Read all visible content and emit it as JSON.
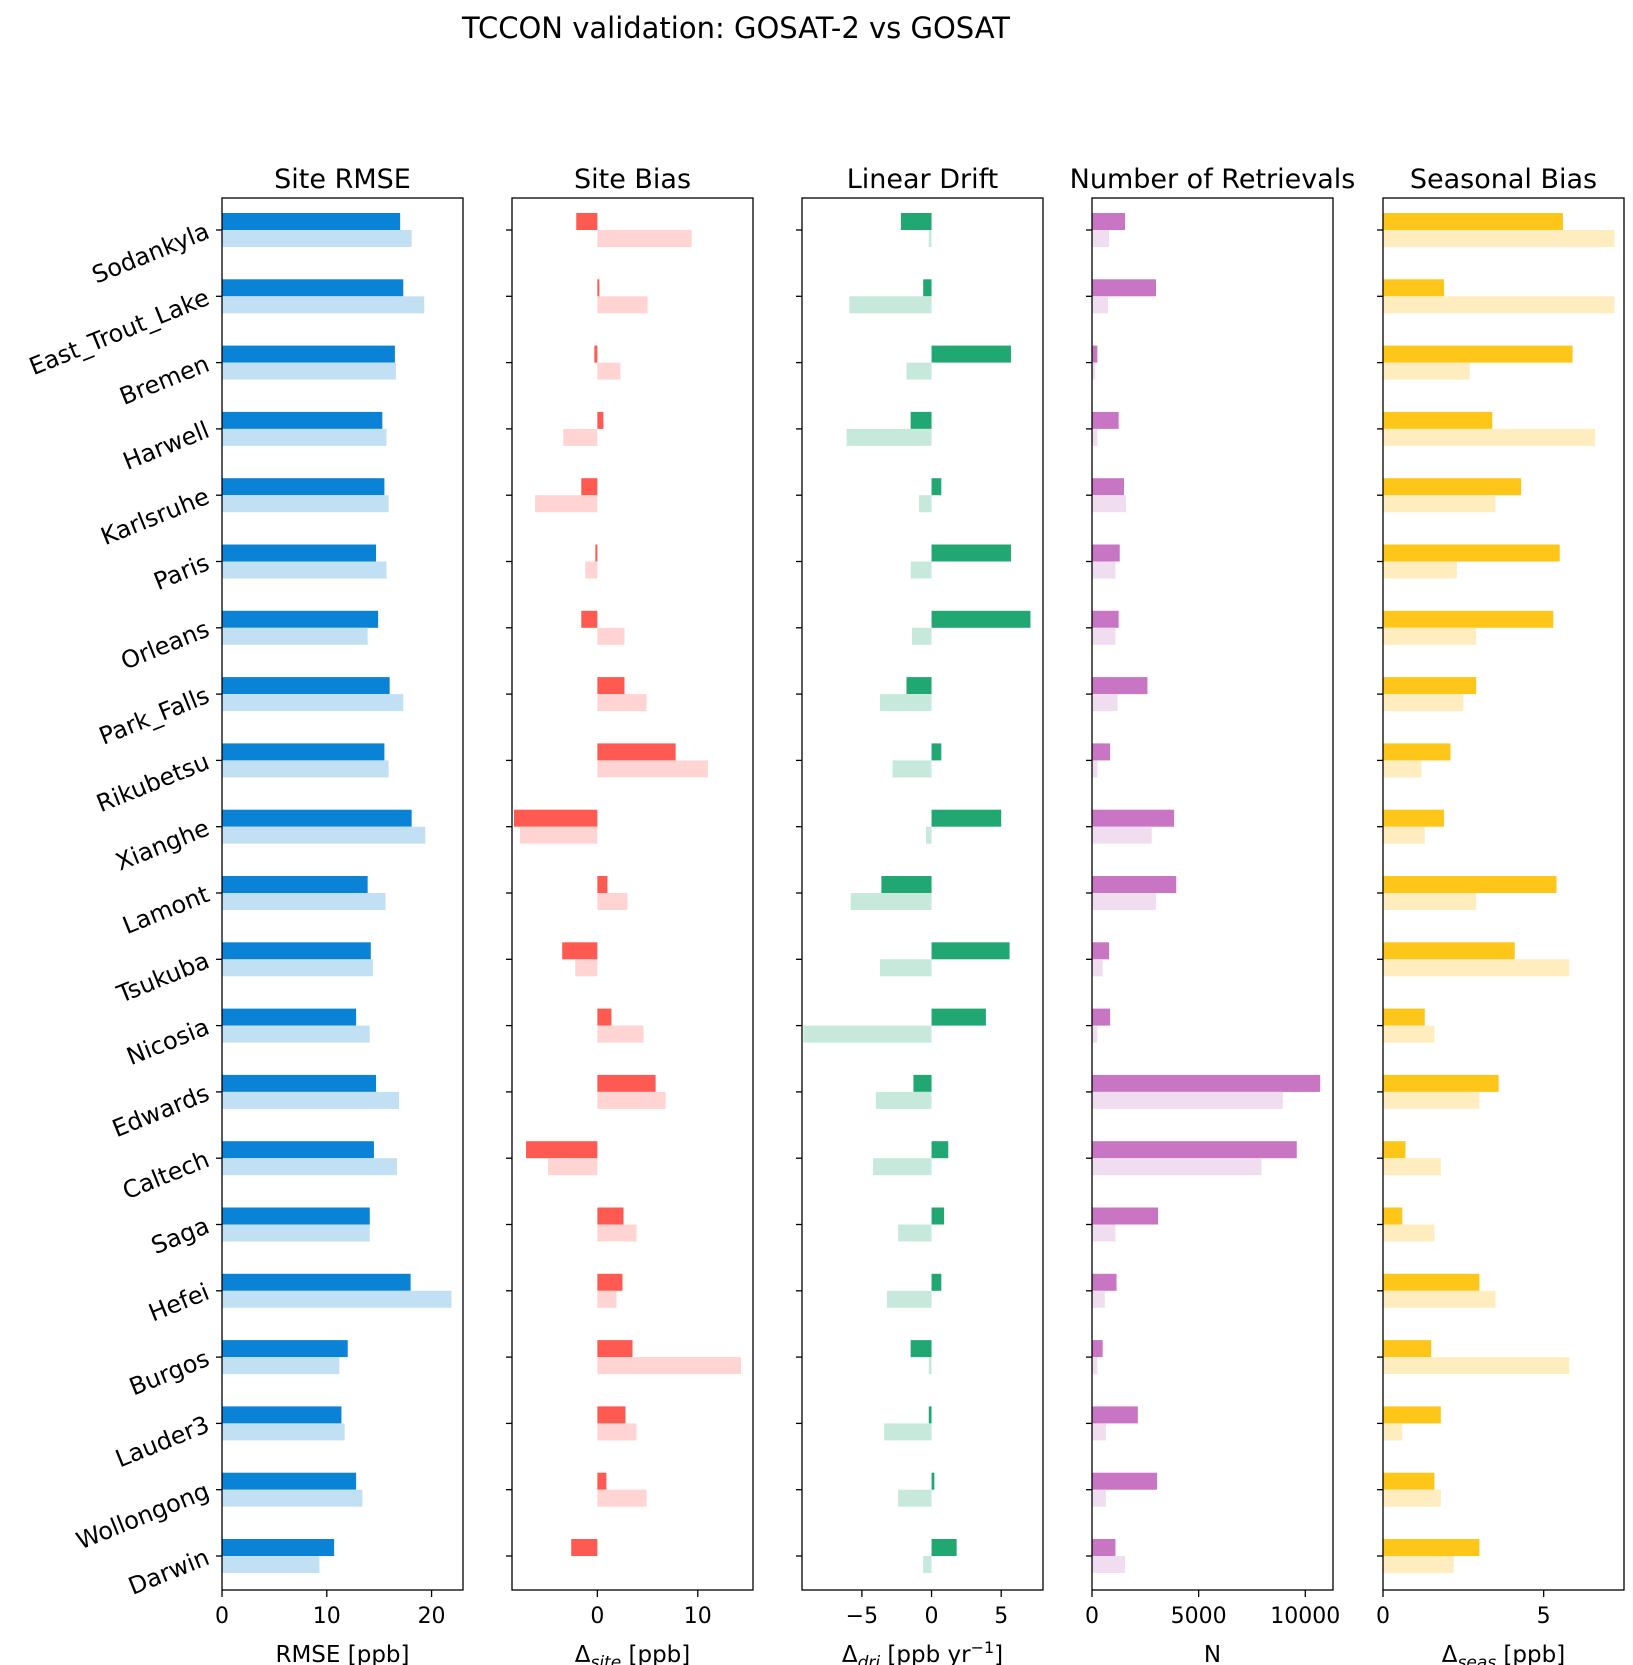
{
  "title": "TCCON validation: GOSAT-2 vs GOSAT",
  "sites": [
    "Sodankyla",
    "East_Trout_Lake",
    "Bremen",
    "Harwell",
    "Karlsruhe",
    "Paris",
    "Orleans",
    "Park_Falls",
    "Rikubetsu",
    "Xianghe",
    "Lamont",
    "Tsukuba",
    "Nicosia",
    "Edwards",
    "Caltech",
    "Saga",
    "Hefei",
    "Burgos",
    "Lauder3",
    "Wollongong",
    "Darwin"
  ],
  "chart_data": [
    {
      "type": "bar",
      "title": "Site RMSE",
      "xlabel": "RMSE [ppb]",
      "xlim": [
        0,
        23
      ],
      "xticks": [
        0,
        10,
        20
      ],
      "colors": {
        "gosat2": "#0A83D7",
        "gosat": "#C2E0F4"
      },
      "series": [
        {
          "values": [
            17.0,
            17.3,
            16.5,
            15.3,
            15.5,
            14.7,
            14.9,
            16.0,
            15.5,
            18.1,
            13.9,
            14.2,
            12.8,
            14.7,
            14.5,
            14.1,
            18.0,
            12.0,
            11.4,
            12.8,
            10.7
          ]
        },
        {
          "values": [
            18.1,
            19.3,
            16.6,
            15.7,
            15.9,
            15.7,
            13.9,
            17.3,
            15.9,
            19.4,
            15.6,
            14.4,
            14.1,
            16.9,
            16.7,
            14.1,
            21.9,
            11.2,
            11.7,
            13.4,
            9.3
          ]
        }
      ]
    },
    {
      "type": "bar",
      "title": "Site Bias",
      "xlabel": "Δsite [ppb]",
      "xlim": [
        -8.5,
        15.5
      ],
      "xticks": [
        0,
        10
      ],
      "colors": {
        "gosat2": "#FF5A52",
        "gosat": "#FFD4D2"
      },
      "series": [
        {
          "values": [
            -2.1,
            0.2,
            -0.3,
            0.6,
            -1.6,
            -0.2,
            -1.6,
            2.7,
            7.8,
            -8.3,
            1.0,
            -3.5,
            1.4,
            5.8,
            -7.1,
            2.6,
            2.5,
            3.5,
            2.8,
            0.9,
            -2.6
          ]
        },
        {
          "values": [
            9.4,
            5.0,
            2.3,
            -3.4,
            -6.2,
            -1.2,
            2.7,
            4.9,
            11.0,
            -7.7,
            3.0,
            -2.2,
            4.6,
            6.8,
            -4.9,
            3.9,
            1.9,
            14.3,
            3.9,
            4.9,
            0.0
          ]
        }
      ]
    },
    {
      "type": "bar",
      "title": "Linear Drift",
      "xlabel": "Δdri [ppb yr⁻¹]",
      "xlim": [
        -9.3,
        8.0
      ],
      "xticks": [
        -5,
        0,
        5
      ],
      "colors": {
        "gosat2": "#21A872",
        "gosat": "#C6E9DC"
      },
      "series": [
        {
          "values": [
            -2.2,
            -0.6,
            5.7,
            -1.5,
            0.7,
            5.7,
            7.1,
            -1.8,
            0.7,
            5.0,
            -3.6,
            5.6,
            3.9,
            -1.3,
            1.2,
            0.9,
            0.7,
            -1.5,
            -0.2,
            0.2,
            1.8
          ]
        },
        {
          "values": [
            -0.2,
            -5.9,
            -1.8,
            -6.1,
            -0.9,
            -1.5,
            -1.4,
            -3.7,
            -2.8,
            -0.4,
            -5.8,
            -3.7,
            -9.2,
            -4.0,
            -4.2,
            -2.4,
            -3.2,
            -0.2,
            -3.4,
            -2.4,
            -0.6
          ]
        }
      ]
    },
    {
      "type": "bar",
      "title": "Number of Retrievals",
      "xlabel": "N",
      "xlim": [
        0,
        11300
      ],
      "xticks": [
        0,
        5000,
        10000
      ],
      "colors": {
        "gosat2": "#C875C4",
        "gosat": "#F1DDF0"
      },
      "series": [
        {
          "values": [
            1550,
            3000,
            250,
            1250,
            1500,
            1300,
            1250,
            2600,
            850,
            3850,
            3950,
            800,
            850,
            10700,
            9600,
            3100,
            1150,
            500,
            2150,
            3050,
            1100
          ]
        },
        {
          "values": [
            800,
            750,
            150,
            250,
            1600,
            1100,
            1100,
            1200,
            250,
            2800,
            3000,
            500,
            250,
            8950,
            7950,
            1100,
            600,
            250,
            650,
            650,
            1550
          ]
        }
      ]
    },
    {
      "type": "bar",
      "title": "Seasonal Bias",
      "xlabel": "Δseas [ppb]",
      "xlim": [
        0,
        7.5
      ],
      "xticks": [
        0,
        5
      ],
      "colors": {
        "gosat2": "#FFC61A",
        "gosat": "#FFEDC0"
      },
      "series": [
        {
          "values": [
            5.6,
            1.9,
            5.9,
            3.4,
            4.3,
            5.5,
            5.3,
            2.9,
            2.1,
            1.9,
            5.4,
            4.1,
            1.3,
            3.6,
            0.7,
            0.6,
            3.0,
            1.5,
            1.8,
            1.6,
            3.0
          ]
        },
        {
          "values": [
            7.2,
            7.2,
            2.7,
            6.6,
            3.5,
            2.3,
            2.9,
            2.5,
            1.2,
            1.3,
            2.9,
            5.8,
            1.6,
            3.0,
            1.8,
            1.6,
            3.5,
            5.8,
            0.6,
            1.8,
            2.2
          ]
        }
      ]
    }
  ]
}
